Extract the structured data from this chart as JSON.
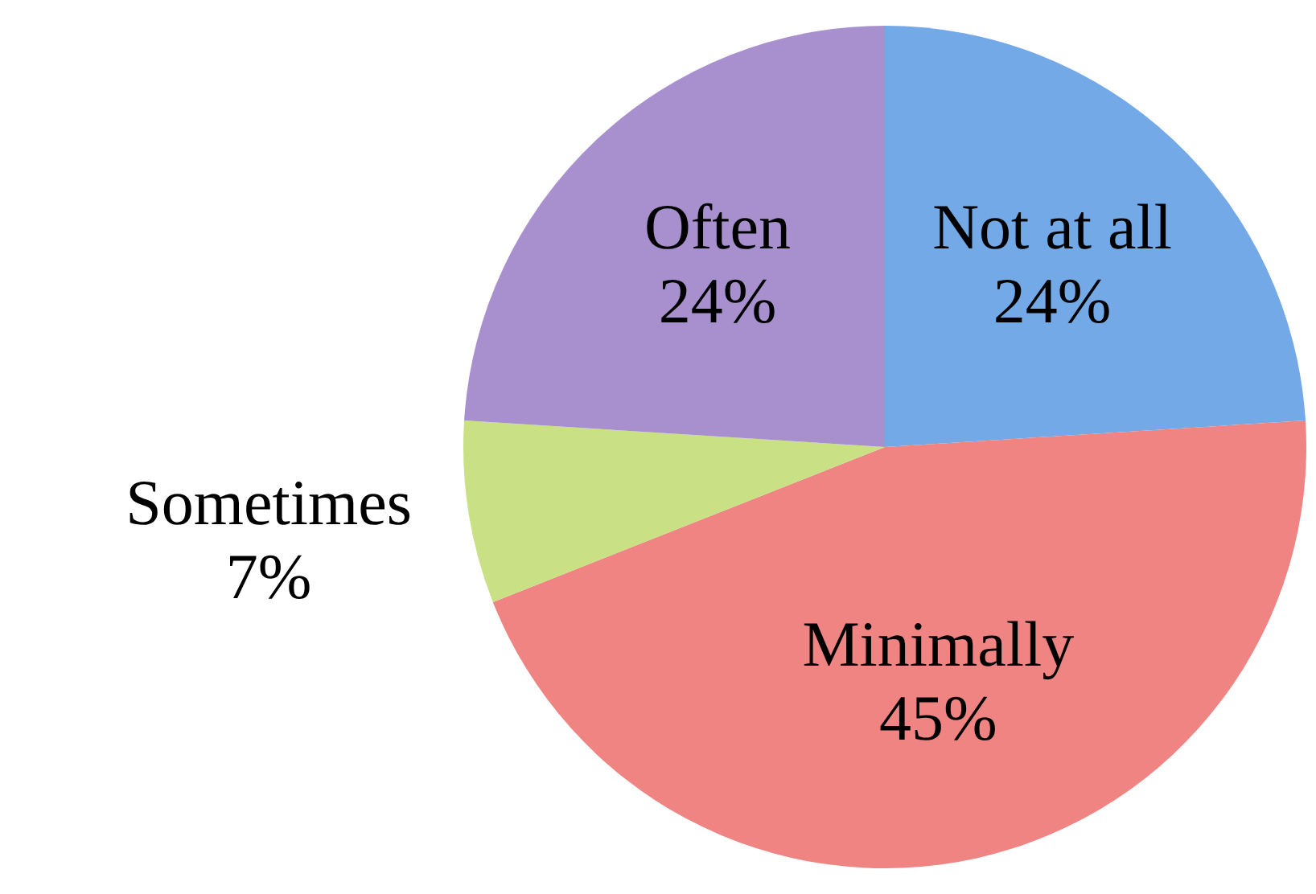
{
  "chart_data": {
    "type": "pie",
    "categories": [
      "Not at all",
      "Minimally",
      "Sometimes",
      "Often"
    ],
    "values": [
      24,
      45,
      7,
      24
    ],
    "colors": [
      "#72a9e6",
      "#f08482",
      "#c9e184",
      "#a890cf"
    ],
    "value_labels": [
      "24%",
      "45%",
      "7%",
      "24%"
    ],
    "legend": false
  }
}
